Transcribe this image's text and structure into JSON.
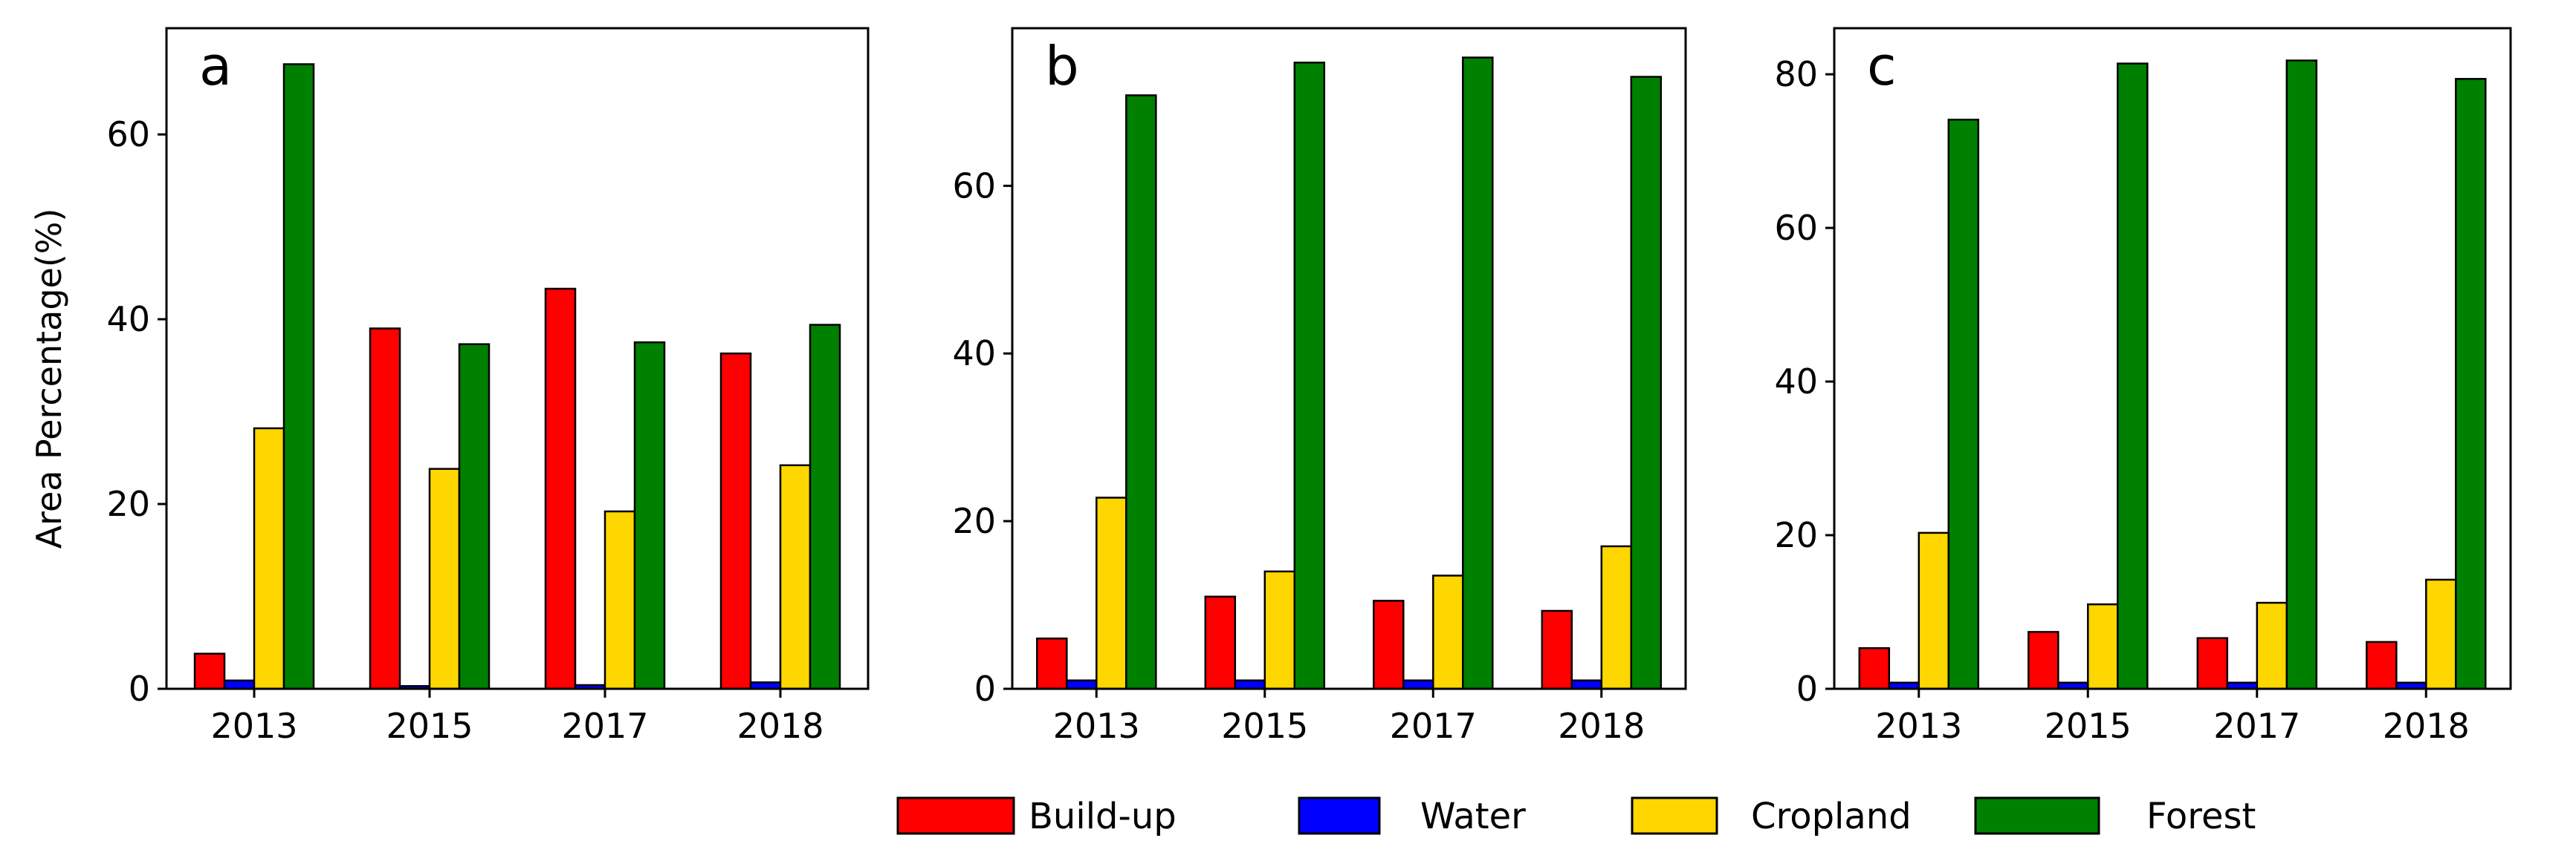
{
  "figure": {
    "ylabel": "Area Percentage(%)",
    "legend": {
      "position": "bottom-center",
      "entries": [
        {
          "key": "buildup",
          "label": "Build-up",
          "color": "#ff0000"
        },
        {
          "key": "water",
          "label": "Water",
          "color": "#0000ff"
        },
        {
          "key": "cropland",
          "label": "Cropland",
          "color": "#ffd700"
        },
        {
          "key": "forest",
          "label": "Forest",
          "color": "#008000"
        }
      ]
    }
  },
  "chart_data": [
    {
      "type": "bar",
      "panel_label": "a",
      "categories": [
        "2013",
        "2015",
        "2017",
        "2018"
      ],
      "ylabel": "Area Percentage(%)",
      "ylim": [
        0,
        71.5
      ],
      "yticks": [
        0,
        20,
        40,
        60
      ],
      "series": [
        {
          "name": "Build-up",
          "color": "#ff0000",
          "values": [
            3.8,
            39.0,
            43.3,
            36.3
          ]
        },
        {
          "name": "Water",
          "color": "#0000ff",
          "values": [
            0.9,
            0.3,
            0.4,
            0.7
          ]
        },
        {
          "name": "Cropland",
          "color": "#ffd700",
          "values": [
            28.2,
            23.8,
            19.2,
            24.2
          ]
        },
        {
          "name": "Forest",
          "color": "#008000",
          "values": [
            67.6,
            37.3,
            37.5,
            39.4
          ]
        }
      ]
    },
    {
      "type": "bar",
      "panel_label": "b",
      "categories": [
        "2013",
        "2015",
        "2017",
        "2018"
      ],
      "ylabel": "",
      "ylim": [
        0,
        78.8
      ],
      "yticks": [
        0,
        20,
        40,
        60
      ],
      "series": [
        {
          "name": "Build-up",
          "color": "#ff0000",
          "values": [
            6.0,
            11.0,
            10.5,
            9.3
          ]
        },
        {
          "name": "Water",
          "color": "#0000ff",
          "values": [
            1.0,
            1.0,
            1.0,
            1.0
          ]
        },
        {
          "name": "Cropland",
          "color": "#ffd700",
          "values": [
            22.8,
            14.0,
            13.5,
            17.0
          ]
        },
        {
          "name": "Forest",
          "color": "#008000",
          "values": [
            70.8,
            74.7,
            75.3,
            73.0
          ]
        }
      ]
    },
    {
      "type": "bar",
      "panel_label": "c",
      "categories": [
        "2013",
        "2015",
        "2017",
        "2018"
      ],
      "ylabel": "",
      "ylim": [
        0,
        86.0
      ],
      "yticks": [
        0,
        20,
        40,
        60,
        80
      ],
      "series": [
        {
          "name": "Build-up",
          "color": "#ff0000",
          "values": [
            5.3,
            7.4,
            6.6,
            6.1
          ]
        },
        {
          "name": "Water",
          "color": "#0000ff",
          "values": [
            0.8,
            0.8,
            0.8,
            0.8
          ]
        },
        {
          "name": "Cropland",
          "color": "#ffd700",
          "values": [
            20.3,
            11.0,
            11.2,
            14.2
          ]
        },
        {
          "name": "Forest",
          "color": "#008000",
          "values": [
            74.1,
            81.4,
            81.8,
            79.4
          ]
        }
      ]
    }
  ]
}
